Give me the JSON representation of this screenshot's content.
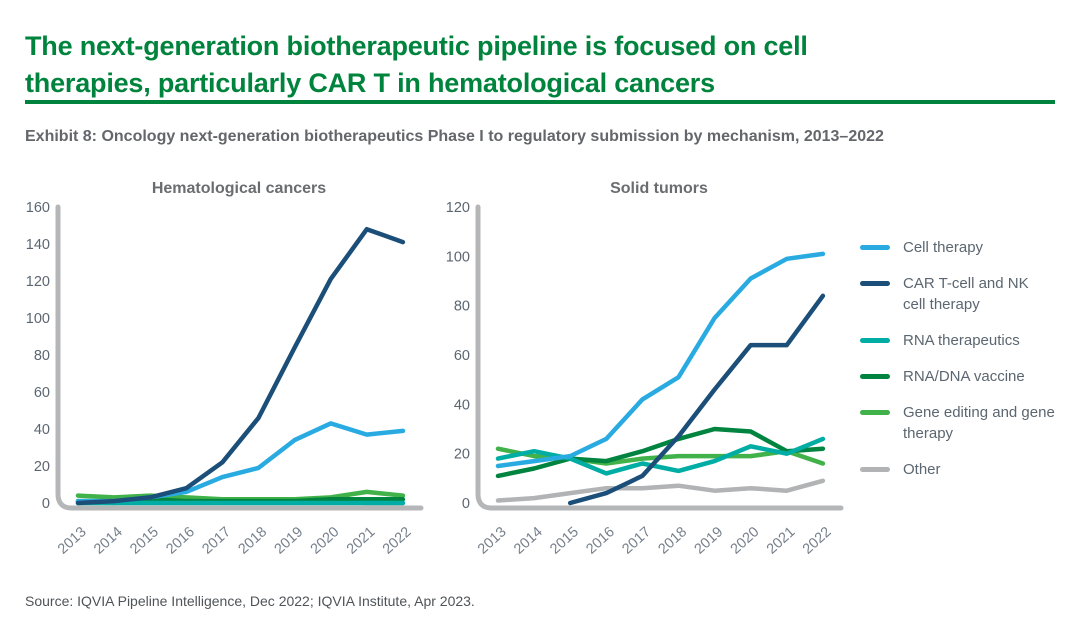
{
  "header": {
    "title_lines": [
      "The next-generation biotherapeutic pipeline is focused on cell",
      "therapies, particularly CAR T in hematological cancers"
    ],
    "title_color": "#00843D",
    "divider_color": "#00843D"
  },
  "exhibit": {
    "caption": "Exhibit 8: Oncology next-generation biotherapeutics Phase I to regulatory submission by mechanism, 2013–2022"
  },
  "legend": {
    "position": "right",
    "items": [
      {
        "label": "Cell therapy",
        "color": "#29ABE2"
      },
      {
        "label": "CAR T-cell and NK cell therapy",
        "color": "#1B4E78"
      },
      {
        "label": "RNA therapeutics",
        "color": "#00ADA4"
      },
      {
        "label": "RNA/DNA vaccine",
        "color": "#00843F"
      },
      {
        "label": "Gene editing and gene therapy",
        "color": "#41B149"
      },
      {
        "label": "Other",
        "color": "#B1B3B5"
      }
    ]
  },
  "chart_data": [
    {
      "type": "line",
      "title": "Hematological cancers",
      "categories": [
        "2013",
        "2014",
        "2015",
        "2016",
        "2017",
        "2018",
        "2019",
        "2020",
        "2021",
        "2022"
      ],
      "ylim": [
        0,
        160
      ],
      "ytick_step": 20,
      "grid": false,
      "legend_position": "right-of-second-chart",
      "series": [
        {
          "name": "Cell therapy",
          "color": "#29ABE2",
          "values": [
            1,
            1,
            3,
            6,
            14,
            19,
            34,
            43,
            37,
            39
          ]
        },
        {
          "name": "CAR T-cell and NK cell therapy",
          "color": "#1B4E78",
          "values": [
            0,
            1,
            3,
            8,
            22,
            46,
            84,
            121,
            148,
            141
          ]
        },
        {
          "name": "RNA therapeutics",
          "color": "#00ADA4",
          "values": [
            0,
            0,
            0,
            0,
            0,
            0,
            0,
            0,
            0,
            0
          ]
        },
        {
          "name": "RNA/DNA vaccine",
          "color": "#00843F",
          "values": [
            1,
            1,
            2,
            1,
            1,
            1,
            1,
            2,
            2,
            2
          ]
        },
        {
          "name": "Gene editing and gene therapy",
          "color": "#41B149",
          "values": [
            4,
            3,
            4,
            3,
            2,
            2,
            2,
            3,
            6,
            4
          ]
        },
        {
          "name": "Other",
          "color": "#B1B3B5",
          "values": [
            1,
            0,
            2,
            1,
            1,
            1,
            1,
            1,
            0,
            0
          ]
        }
      ]
    },
    {
      "type": "line",
      "title": "Solid tumors",
      "categories": [
        "2013",
        "2014",
        "2015",
        "2016",
        "2017",
        "2018",
        "2019",
        "2020",
        "2021",
        "2022"
      ],
      "ylim": [
        0,
        120
      ],
      "ytick_step": 20,
      "grid": false,
      "series": [
        {
          "name": "Cell therapy",
          "color": "#29ABE2",
          "values": [
            15,
            17,
            19,
            26,
            42,
            51,
            75,
            91,
            99,
            101
          ]
        },
        {
          "name": "CAR T-cell and NK cell therapy",
          "color": "#1B4E78",
          "values": [
            null,
            null,
            0,
            4,
            11,
            27,
            46,
            64,
            64,
            84
          ]
        },
        {
          "name": "RNA therapeutics",
          "color": "#00ADA4",
          "values": [
            18,
            21,
            18,
            12,
            16,
            13,
            17,
            23,
            20,
            26
          ]
        },
        {
          "name": "RNA/DNA vaccine",
          "color": "#00843F",
          "values": [
            11,
            14,
            18,
            17,
            21,
            26,
            30,
            29,
            21,
            22
          ]
        },
        {
          "name": "Gene editing and gene therapy",
          "color": "#41B149",
          "values": [
            22,
            19,
            18,
            16,
            18,
            19,
            19,
            19,
            21,
            16
          ]
        },
        {
          "name": "Other",
          "color": "#B1B3B5",
          "values": [
            1,
            2,
            4,
            6,
            6,
            7,
            5,
            6,
            5,
            9
          ]
        }
      ]
    }
  ],
  "source": {
    "text": "Source: IQVIA Pipeline Intelligence, Dec 2022; IQVIA Institute, Apr 2023."
  }
}
